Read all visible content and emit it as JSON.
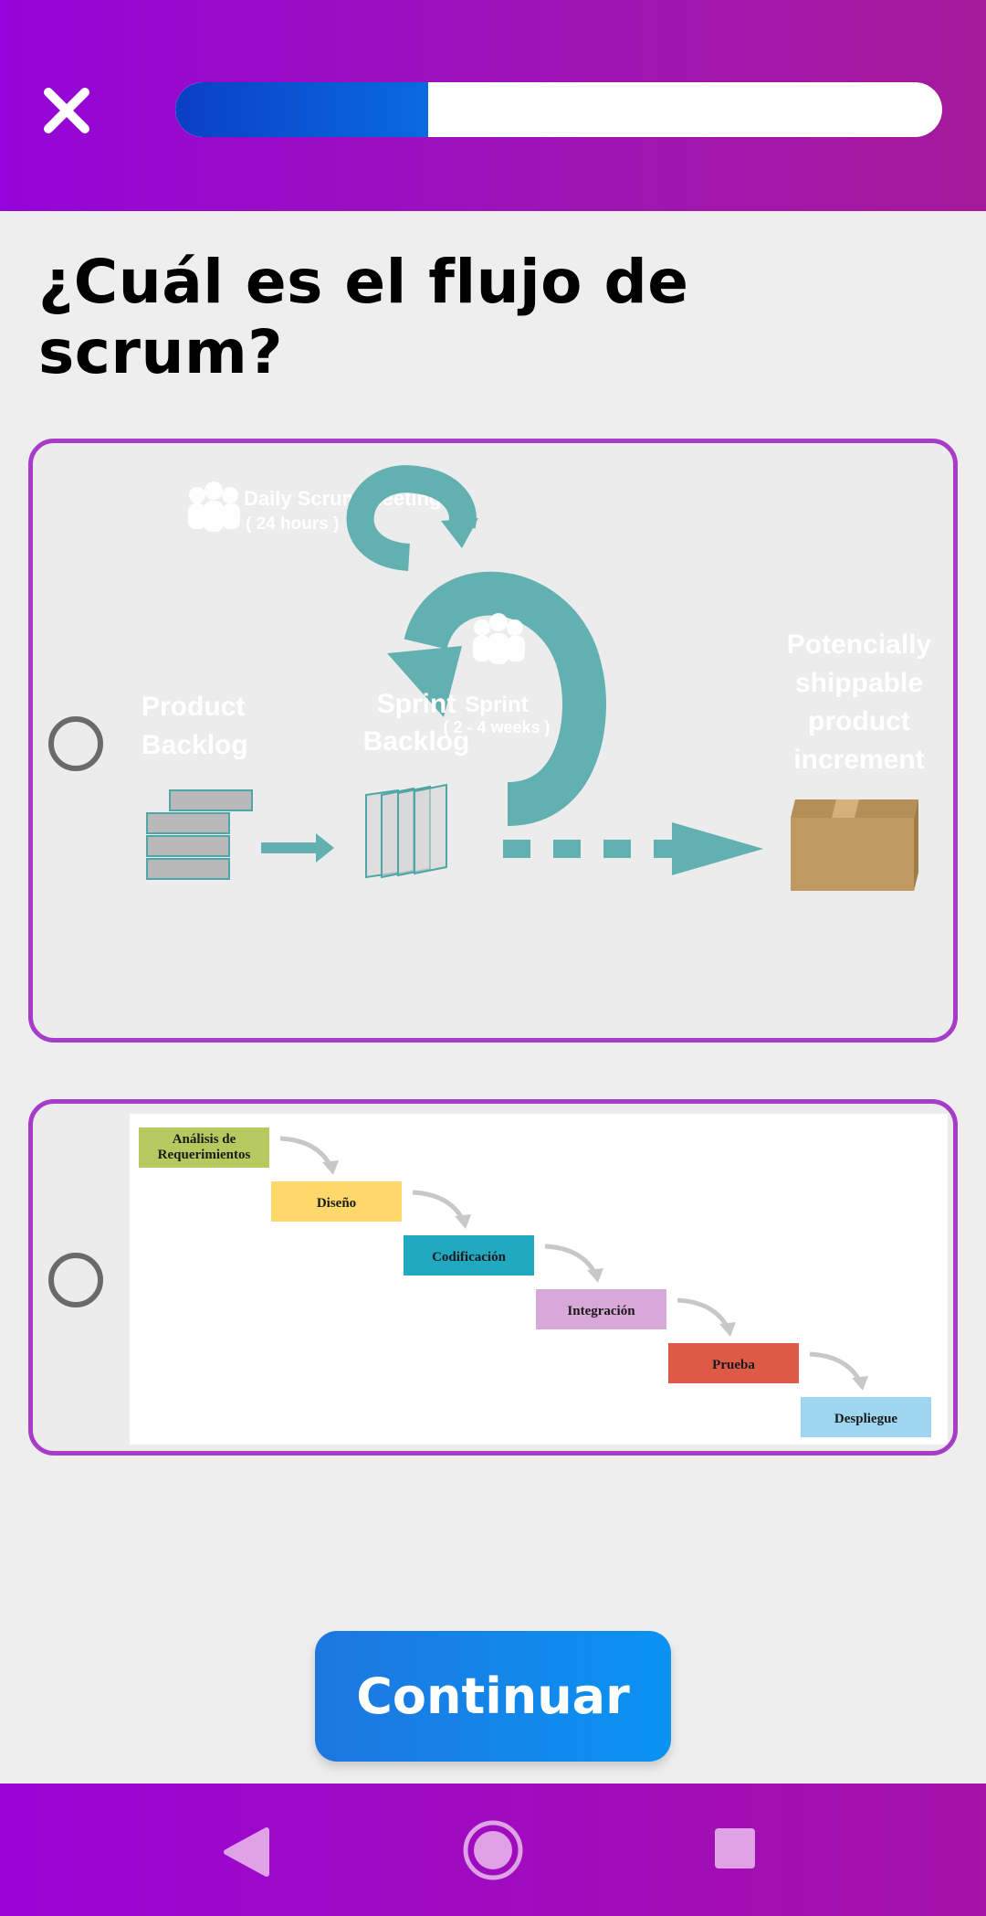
{
  "header": {
    "close_icon": "close-x-icon",
    "progress_fraction": 0.33
  },
  "question": {
    "text": "¿Cuál es el flujo de scrum?"
  },
  "options": [
    {
      "kind": "scrum-diagram",
      "selected": false,
      "labels": {
        "daily_meeting": "Daily Scrum Meeting",
        "daily_hours": "( 24 hours )",
        "product_backlog_1": "Product",
        "product_backlog_2": "Backlog",
        "sprint_backlog_1": "Sprint",
        "sprint_backlog_2": "Backlog",
        "sprint": "Sprint",
        "sprint_weeks": "( 2 - 4 weeks )",
        "increment_1": "Potencially",
        "increment_2": "shippable",
        "increment_3": "product",
        "increment_4": "increment"
      }
    },
    {
      "kind": "waterfall-diagram",
      "selected": false,
      "steps": [
        {
          "line1": "Análisis de",
          "line2": "Requerimientos",
          "color": "#b5c95f"
        },
        {
          "line1": "Diseño",
          "line2": "",
          "color": "#ffd86b"
        },
        {
          "line1": "Codificación",
          "line2": "",
          "color": "#22a9c2"
        },
        {
          "line1": "Integración",
          "line2": "",
          "color": "#d8a8d8"
        },
        {
          "line1": "Prueba",
          "line2": "",
          "color": "#dd5a47"
        },
        {
          "line1": "Despliegue",
          "line2": "",
          "color": "#9ed6f2"
        }
      ]
    }
  ],
  "footer": {
    "continue_label": "Continuar"
  },
  "colors": {
    "accent_purple": "#a63cc8",
    "scrum_teal": "#62b0b0",
    "button_blue": "#1a86ea"
  }
}
